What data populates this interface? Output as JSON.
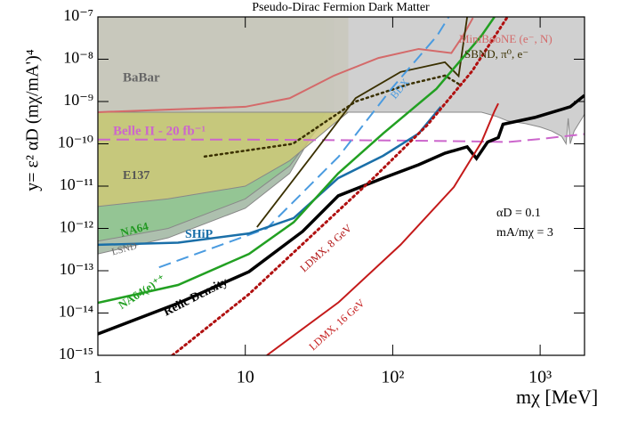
{
  "chart_data": {
    "type": "line",
    "title": "Pseudo-Dirac Fermion Dark Matter",
    "x_label": "mχ [MeV]",
    "y_label": "y= ε² αD (mχ/mA')⁴",
    "log_x": true,
    "log_y": true,
    "xlim": [
      1,
      2000
    ],
    "ylim": [
      1e-15,
      1e-07
    ],
    "xticks": [
      1,
      10,
      {
        "value": 100,
        "label": "10²"
      },
      {
        "value": 1000,
        "label": "10³"
      }
    ],
    "yticks": [
      {
        "value": 1e-15,
        "label": "10⁻¹⁵"
      },
      {
        "value": 1e-14,
        "label": "10⁻¹⁴"
      },
      {
        "value": 1e-13,
        "label": "10⁻¹³"
      },
      {
        "value": 1e-12,
        "label": "10⁻¹²"
      },
      {
        "value": 1e-11,
        "label": "10⁻¹¹"
      },
      {
        "value": 1e-10,
        "label": "10⁻¹⁰"
      },
      {
        "value": 1e-09,
        "label": "10⁻⁹"
      },
      {
        "value": 1e-08,
        "label": "10⁻⁸"
      },
      {
        "value": 1e-07,
        "label": "10⁻⁷"
      }
    ],
    "annotations": [
      "αD = 0.1",
      "mA/mχ = 3"
    ],
    "series": [
      {
        "name": "LSND",
        "kind": "area",
        "color": "#9fb5a0",
        "label_color": "#666666",
        "x": [
          1,
          3,
          10,
          20,
          35
        ],
        "y": [
          2.5e-13,
          6e-13,
          3e-12,
          2e-11,
          5.6e-10
        ]
      },
      {
        "name": "NA64",
        "kind": "area",
        "color": "#8fc58f",
        "label_color": "#229922",
        "x": [
          1,
          3,
          10,
          20,
          30,
          40
        ],
        "y": [
          5e-13,
          1e-12,
          5e-12,
          3e-11,
          2e-10,
          5.6e-10
        ]
      },
      {
        "name": "E137",
        "kind": "area",
        "color": "#cfc878",
        "label_color": "#555555",
        "x": [
          1,
          3,
          10,
          20,
          40,
          50
        ],
        "y": [
          3.3e-12,
          5e-12,
          1e-11,
          4e-11,
          3e-10,
          5.6e-10
        ]
      },
      {
        "name": "BaBar",
        "kind": "area",
        "color": "#c8c8c8",
        "label_color": "#666666",
        "x": [
          1,
          400,
          500,
          600,
          800,
          1000,
          1200,
          1400,
          1500,
          1550,
          1600,
          1700,
          2000
        ],
        "y": [
          5.6e-10,
          5.6e-10,
          4.5e-10,
          3.5e-10,
          3e-10,
          2.5e-10,
          2e-10,
          1.5e-10,
          1e-10,
          4e-10,
          1e-10,
          2e-10,
          5e-10
        ]
      },
      {
        "name": "Belle II - 20 fb⁻¹",
        "kind": "line",
        "color": "#cc66cc",
        "dash": "dashed",
        "width": 2,
        "x": [
          1,
          10,
          100,
          300,
          600,
          1000,
          2000
        ],
        "y": [
          1.26e-10,
          1.26e-10,
          1.2e-10,
          1.15e-10,
          1.1e-10,
          1.3e-10,
          1.7e-10
        ]
      },
      {
        "name": "MiniBooNE (e⁻, N)",
        "kind": "line",
        "color": "#d46a6a",
        "dash": "solid",
        "width": 2,
        "x": [
          1,
          10,
          20,
          40,
          80,
          150,
          250,
          300,
          350
        ],
        "y": [
          5.6e-10,
          7.5e-10,
          1.2e-09,
          4.1e-09,
          1.07e-08,
          1.75e-08,
          1.4e-08,
          3.6e-08,
          9.5e-08
        ]
      },
      {
        "name": "SBND, π⁰, e⁻",
        "kind": "line",
        "color": "#3a3000",
        "dash": "solid",
        "width": 1.8,
        "x": [
          12,
          28,
          56,
          113,
          226,
          280,
          320
        ],
        "y": [
          1.07e-12,
          5e-11,
          1.2e-09,
          5e-09,
          8.5e-09,
          4e-09,
          1e-07
        ]
      },
      {
        "kind": "line",
        "color": "#3a3000",
        "dash": "dotted",
        "width": 2.5,
        "x": [
          5.3,
          21,
          56,
          130,
          226,
          280
        ],
        "y": [
          5e-11,
          1e-10,
          1e-09,
          2.6e-09,
          4.1e-09,
          2.6e-09
        ]
      },
      {
        "name": "BDX",
        "kind": "line",
        "color": "#4a9be0",
        "dash": "dashed",
        "width": 2,
        "x": [
          2.6,
          14,
          43,
          98,
          200,
          240
        ],
        "y": [
          1.2e-13,
          1e-12,
          5e-11,
          2e-09,
          3.6e-08,
          1e-07
        ]
      },
      {
        "name": "SHiP",
        "kind": "line",
        "color": "#1a6fa8",
        "dash": "solid",
        "width": 2.5,
        "x": [
          1,
          3.5,
          10.6,
          21.3,
          42.7,
          86,
          150,
          212
        ],
        "y": [
          4.1e-13,
          4.6e-13,
          7.6e-13,
          1.75e-12,
          1.55e-11,
          5.2e-11,
          1.75e-10,
          7.5e-10
        ]
      },
      {
        "name": "NA64(e)⁺⁺",
        "kind": "line",
        "color": "#22a022",
        "dash": "solid",
        "width": 2.5,
        "x": [
          1,
          3.5,
          10.6,
          21.3,
          42.7,
          86,
          198,
          400,
          490
        ],
        "y": [
          1.74e-14,
          4.6e-14,
          2.5e-13,
          1.4e-12,
          2e-11,
          1.75e-10,
          2e-09,
          3.6e-08,
          1e-07
        ]
      },
      {
        "name": "Relic Density",
        "kind": "line",
        "color": "#000000",
        "dash": "solid",
        "width": 3.5,
        "x": [
          1,
          3.5,
          10.6,
          24.5,
          42.7,
          86,
          150,
          226,
          320,
          370,
          440,
          520,
          560,
          920,
          1600,
          2000
        ],
        "y": [
          3.2e-15,
          1.7e-14,
          9.5e-14,
          8.5e-13,
          5.9e-12,
          1.55e-11,
          3.2e-11,
          6e-11,
          8.5e-11,
          4.5e-11,
          1.1e-10,
          1.4e-10,
          2.9e-10,
          4.2e-10,
          7.5e-10,
          1.4e-09
        ]
      },
      {
        "name": "LDMX, 8 GeV",
        "kind": "line",
        "color": "#b01010",
        "dash": "dotted",
        "width": 3,
        "x": [
          3.2,
          10.6,
          28,
          74,
          172,
          345,
          600
        ],
        "y": [
          1e-15,
          2.8e-14,
          6.6e-13,
          1.55e-11,
          2.8e-10,
          5.2e-09,
          1e-07
        ]
      },
      {
        "name": "LDMX, 16 GeV",
        "kind": "line",
        "color": "#c41a1a",
        "dash": "solid",
        "width": 2,
        "x": [
          14,
          43,
          113,
          260,
          400,
          490,
          520
        ],
        "y": [
          1e-15,
          1.8e-14,
          4.1e-13,
          9.5e-12,
          1.1e-10,
          5.9e-10,
          9e-10
        ]
      }
    ]
  }
}
